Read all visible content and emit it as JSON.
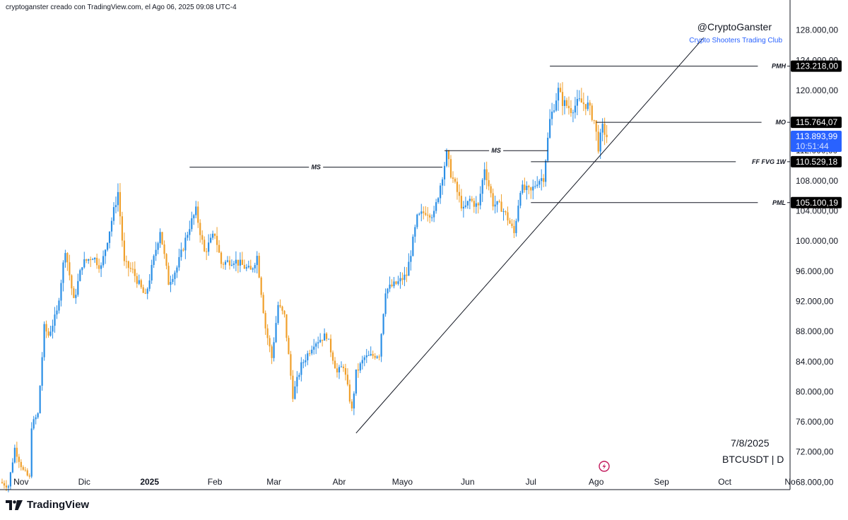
{
  "header": "cryptoganster creado con TradingView.com, el Ago 06, 2025 09:08 UTC-4",
  "branding": {
    "logo_icon": "tradingview-logo-icon",
    "name": "TradingView"
  },
  "author": {
    "handle": "@CryptoGanster",
    "club": "Crypto Shooters Trading Club"
  },
  "date_label": "7/8/2025",
  "symbol_label": "BTCUSDT | D",
  "colors": {
    "up": "#2b8fe6",
    "down": "#f0a02c",
    "badge": "#000000",
    "live_badge": "#2962ff",
    "brand_blue": "#2962ff"
  },
  "chart_data": {
    "type": "candlestick",
    "symbol": "BTCUSDT",
    "interval": "D",
    "ylim": [
      67000,
      132000
    ],
    "y_ticks": [
      {
        "value": 68000,
        "label": "68.000,00"
      },
      {
        "value": 72000,
        "label": "72.000,00"
      },
      {
        "value": 76000,
        "label": "76.000,00"
      },
      {
        "value": 80000,
        "label": "80.000,00"
      },
      {
        "value": 84000,
        "label": "84.000,00"
      },
      {
        "value": 88000,
        "label": "88.000,00"
      },
      {
        "value": 92000,
        "label": "92.000,00"
      },
      {
        "value": 96000,
        "label": "96.000,00"
      },
      {
        "value": 100000,
        "label": "100.000,00"
      },
      {
        "value": 104000,
        "label": "104.000,00"
      },
      {
        "value": 108000,
        "label": "108.000,00"
      },
      {
        "value": 112000,
        "label": "112.000,00"
      },
      {
        "value": 116000,
        "label": "116.000,00"
      },
      {
        "value": 120000,
        "label": "120.000,00"
      },
      {
        "value": 124000,
        "label": "124.000,00"
      },
      {
        "value": 128000,
        "label": "128.000,00"
      }
    ],
    "x_ticks": [
      {
        "date": "2024-11-01",
        "label": "Nov"
      },
      {
        "date": "2024-12-01",
        "label": "Dic"
      },
      {
        "date": "2025-01-01",
        "label": "2025",
        "bold": true
      },
      {
        "date": "2025-02-01",
        "label": "Feb"
      },
      {
        "date": "2025-03-01",
        "label": "Mar"
      },
      {
        "date": "2025-04-01",
        "label": "Abr"
      },
      {
        "date": "2025-05-01",
        "label": "Mayo"
      },
      {
        "date": "2025-06-01",
        "label": "Jun"
      },
      {
        "date": "2025-07-01",
        "label": "Jul"
      },
      {
        "date": "2025-08-01",
        "label": "Ago"
      },
      {
        "date": "2025-09-01",
        "label": "Sep"
      },
      {
        "date": "2025-10-01",
        "label": "Oct"
      },
      {
        "date": "2025-11-01",
        "label": "No"
      }
    ],
    "xlim": [
      "2024-10-22",
      "2025-11-01"
    ],
    "price_anchors": [
      [
        "2024-10-22",
        68000
      ],
      [
        "2024-10-26",
        67500
      ],
      [
        "2024-10-29",
        72500
      ],
      [
        "2024-11-02",
        69500
      ],
      [
        "2024-11-05",
        68500
      ],
      [
        "2024-11-06",
        75500
      ],
      [
        "2024-11-09",
        77000
      ],
      [
        "2024-11-12",
        88500
      ],
      [
        "2024-11-14",
        87500
      ],
      [
        "2024-11-18",
        90500
      ],
      [
        "2024-11-22",
        99000
      ],
      [
        "2024-11-26",
        92000
      ],
      [
        "2024-11-30",
        97000
      ],
      [
        "2024-12-05",
        98000
      ],
      [
        "2024-12-09",
        96500
      ],
      [
        "2024-12-13",
        101500
      ],
      [
        "2024-12-17",
        106500
      ],
      [
        "2024-12-20",
        97000
      ],
      [
        "2024-12-24",
        96000
      ],
      [
        "2024-12-30",
        92500
      ],
      [
        "2025-01-06",
        101500
      ],
      [
        "2025-01-10",
        94500
      ],
      [
        "2025-01-14",
        96500
      ],
      [
        "2025-01-20",
        102000
      ],
      [
        "2025-01-23",
        104000
      ],
      [
        "2025-01-27",
        98500
      ],
      [
        "2025-02-01",
        101000
      ],
      [
        "2025-02-04",
        97000
      ],
      [
        "2025-02-10",
        97500
      ],
      [
        "2025-02-18",
        96000
      ],
      [
        "2025-02-21",
        98000
      ],
      [
        "2025-02-25",
        88500
      ],
      [
        "2025-02-28",
        84500
      ],
      [
        "2025-03-03",
        91500
      ],
      [
        "2025-03-06",
        90000
      ],
      [
        "2025-03-10",
        79500
      ],
      [
        "2025-03-14",
        83500
      ],
      [
        "2025-03-20",
        86500
      ],
      [
        "2025-03-26",
        87500
      ],
      [
        "2025-03-31",
        82500
      ],
      [
        "2025-04-03",
        83500
      ],
      [
        "2025-04-07",
        77500
      ],
      [
        "2025-04-09",
        82500
      ],
      [
        "2025-04-13",
        84500
      ],
      [
        "2025-04-20",
        85000
      ],
      [
        "2025-04-23",
        93500
      ],
      [
        "2025-04-29",
        94500
      ],
      [
        "2025-05-03",
        95500
      ],
      [
        "2025-05-08",
        103000
      ],
      [
        "2025-05-12",
        104000
      ],
      [
        "2025-05-16",
        103500
      ],
      [
        "2025-05-22",
        111500
      ],
      [
        "2025-05-24",
        109000
      ],
      [
        "2025-05-30",
        104000
      ],
      [
        "2025-06-02",
        105500
      ],
      [
        "2025-06-06",
        104500
      ],
      [
        "2025-06-09",
        109800
      ],
      [
        "2025-06-13",
        105000
      ],
      [
        "2025-06-17",
        104500
      ],
      [
        "2025-06-20",
        103000
      ],
      [
        "2025-06-23",
        101000
      ],
      [
        "2025-06-26",
        107000
      ],
      [
        "2025-07-01",
        106500
      ],
      [
        "2025-07-04",
        108000
      ],
      [
        "2025-07-07",
        108500
      ],
      [
        "2025-07-10",
        116000
      ],
      [
        "2025-07-14",
        120000
      ],
      [
        "2025-07-16",
        118500
      ],
      [
        "2025-07-20",
        117500
      ],
      [
        "2025-07-24",
        118500
      ],
      [
        "2025-07-28",
        118000
      ],
      [
        "2025-07-31",
        116000
      ],
      [
        "2025-08-02",
        112500
      ],
      [
        "2025-08-04",
        115000
      ],
      [
        "2025-08-06",
        113894
      ]
    ],
    "levels": [
      {
        "tag": "PMH",
        "price_label": "123.218,00",
        "value": 123218,
        "from": "2025-07-10"
      },
      {
        "tag": "MO",
        "price_label": "115.764,07",
        "value": 115764.07,
        "from": "2025-08-01"
      },
      {
        "tag": "FF FVG 1W",
        "price_label": "110.529,18",
        "value": 110529.18,
        "from": "2025-07-01"
      },
      {
        "tag": "PML",
        "price_label": "105.100,19",
        "value": 105100.19,
        "from": "2025-07-01"
      }
    ],
    "ms_lines": [
      {
        "tag": "MS",
        "value": 109800,
        "from": "2025-01-20",
        "to": "2025-05-20"
      },
      {
        "tag": "MS",
        "value": 112000,
        "from": "2025-05-21",
        "to": "2025-07-09"
      }
    ],
    "trendline": {
      "from": [
        "2025-04-09",
        74500
      ],
      "to": [
        "2025-09-21",
        127000
      ]
    },
    "current_price": {
      "value": 113893.99,
      "label": "113.893,99",
      "countdown": "10:51:44"
    }
  }
}
